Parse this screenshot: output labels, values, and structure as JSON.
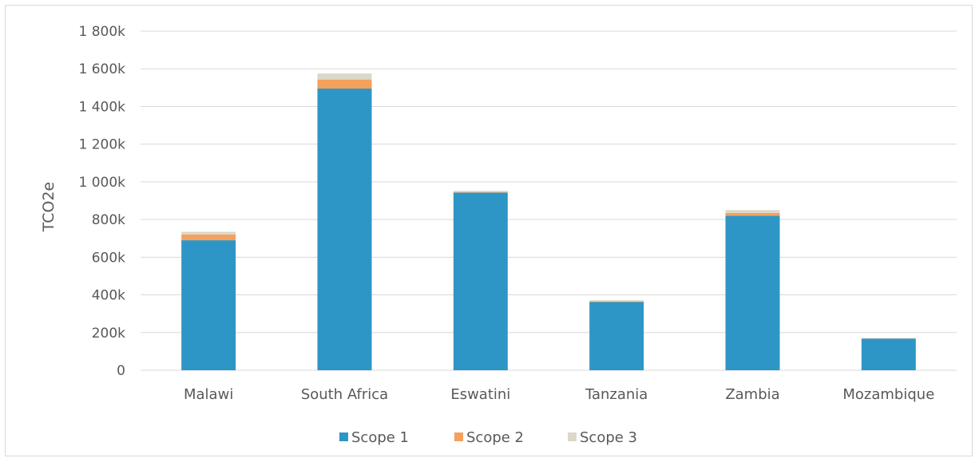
{
  "chart_data": {
    "type": "bar",
    "stacked": true,
    "ylabel": "TCO2e",
    "xlabel": "",
    "title": "",
    "ylim": [
      0,
      1800000
    ],
    "y_ticks": [
      {
        "value": 0,
        "label": "0"
      },
      {
        "value": 200000,
        "label": "200k"
      },
      {
        "value": 400000,
        "label": "400k"
      },
      {
        "value": 600000,
        "label": "600k"
      },
      {
        "value": 800000,
        "label": "800k"
      },
      {
        "value": 1000000,
        "label": "1 000k"
      },
      {
        "value": 1200000,
        "label": "1 200k"
      },
      {
        "value": 1400000,
        "label": "1 400k"
      },
      {
        "value": 1600000,
        "label": "1 600k"
      },
      {
        "value": 1800000,
        "label": "1 800k"
      }
    ],
    "categories": [
      "Malawi",
      "South Africa",
      "Eswatini",
      "Tanzania",
      "Zambia",
      "Mozambique"
    ],
    "series": [
      {
        "name": "Scope 1",
        "color": "#2e96c6",
        "values": [
          690000,
          1495000,
          943000,
          362000,
          820000,
          168000
        ]
      },
      {
        "name": "Scope 2",
        "color": "#f5a15d",
        "values": [
          30000,
          48000,
          3000,
          3000,
          15000,
          1000
        ]
      },
      {
        "name": "Scope 3",
        "color": "#dcd8c8",
        "values": [
          15000,
          32000,
          6000,
          7000,
          15000,
          2000
        ]
      }
    ],
    "grid": true,
    "legend_position": "bottom"
  }
}
